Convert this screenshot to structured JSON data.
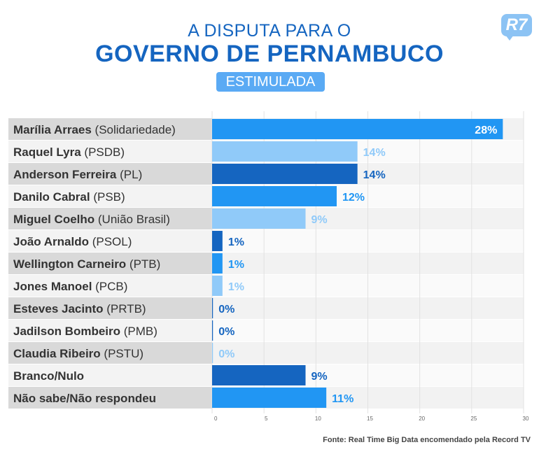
{
  "header": {
    "title_line1": "A DISPUTA PARA O",
    "title_line2": "GOVERNO DE PERNAMBUCO",
    "subtitle": "ESTIMULADA",
    "logo": "R7"
  },
  "source": "Fonte: Real Time Big Data encomendado pela Record TV",
  "colors": {
    "dark_blue": "#1565c0",
    "mid_blue": "#2196f3",
    "light_blue": "#90caf9"
  },
  "chart_data": {
    "type": "bar",
    "orientation": "horizontal",
    "title": "A DISPUTA PARA O GOVERNO DE PERNAMBUCO",
    "subtitle": "ESTIMULADA",
    "categories": [
      {
        "name": "Marília Arraes",
        "party": "(Solidariedade)"
      },
      {
        "name": "Raquel Lyra",
        "party": "(PSDB)"
      },
      {
        "name": "Anderson Ferreira",
        "party": "(PL)"
      },
      {
        "name": "Danilo Cabral",
        "party": "(PSB)"
      },
      {
        "name": "Miguel Coelho",
        "party": "(União Brasil)"
      },
      {
        "name": "João Arnaldo",
        "party": "(PSOL)"
      },
      {
        "name": "Wellington Carneiro",
        "party": "(PTB)"
      },
      {
        "name": "Jones Manoel",
        "party": "(PCB)"
      },
      {
        "name": "Esteves Jacinto",
        "party": "(PRTB)"
      },
      {
        "name": "Jadilson Bombeiro",
        "party": "(PMB)"
      },
      {
        "name": "Claudia Ribeiro",
        "party": "(PSTU)"
      },
      {
        "name": "Branco/Nulo",
        "party": ""
      },
      {
        "name": "Não sabe/Não respondeu",
        "party": ""
      }
    ],
    "values": [
      28,
      14,
      14,
      12,
      9,
      1,
      1,
      1,
      0,
      0,
      0,
      9,
      11
    ],
    "value_labels": [
      "28%",
      "14%",
      "14%",
      "12%",
      "9%",
      "1%",
      "1%",
      "1%",
      "0%",
      "0%",
      "0%",
      "9%",
      "11%"
    ],
    "bar_colors": [
      "mid_blue",
      "light_blue",
      "dark_blue",
      "mid_blue",
      "light_blue",
      "dark_blue",
      "mid_blue",
      "light_blue",
      "dark_blue",
      "dark_blue",
      "light_blue",
      "dark_blue",
      "mid_blue"
    ],
    "xlim": [
      0,
      30
    ],
    "xticks": [
      0,
      5,
      10,
      15,
      20,
      25,
      30
    ],
    "grid": true
  }
}
